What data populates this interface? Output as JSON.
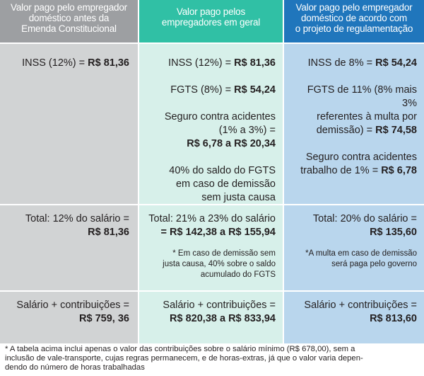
{
  "headers": {
    "col1": [
      "Valor pago pelo empregador",
      "doméstico antes da",
      "Emenda Constitucional"
    ],
    "col2": [
      "Valor pago pelos",
      "empregadores em geral"
    ],
    "col3": [
      "Valor pago pelo empregador",
      "doméstico de acordo com",
      "o projeto de regulamentação"
    ]
  },
  "contributions": {
    "col1": {
      "inss_label": "INSS (12%) = ",
      "inss_value": "R$ 81,36"
    },
    "col2": {
      "inss_label": "INSS (12%) = ",
      "inss_value": "R$ 81,36",
      "fgts_label": "FGTS (8%) = ",
      "fgts_value": "R$ 54,24",
      "seguro_line1": "Seguro contra acidentes",
      "seguro_line2": "(1% a 3%) =",
      "seguro_value": "R$ 6,78 a R$ 20,34",
      "multa_line1": "40% do saldo do FGTS",
      "multa_line2": "em caso de demissão",
      "multa_line3": "sem justa causa"
    },
    "col3": {
      "inss_label": "INSS de 8% = ",
      "inss_value": "R$ 54,24",
      "fgts_line1": "FGTS de 11% (8% mais 3%",
      "fgts_line2": "referentes à multa por",
      "fgts_line3_label": "demissão) = ",
      "fgts_value": "R$ 74,58",
      "seguro_line1": "Seguro contra acidentes",
      "seguro_line2_label": "trabalho de 1% = ",
      "seguro_value": "R$ 6,78"
    }
  },
  "totals": {
    "col1": {
      "label": "Total: 12% do salário =",
      "value": "R$ 81,36"
    },
    "col2": {
      "label": "Total: 21% a 23% do salário",
      "value": "= R$ 142,38 a R$ 155,94",
      "note_line1": "* Em caso de demissão sem",
      "note_line2": "justa causa, 40% sobre o saldo",
      "note_line3": "acumulado do FGTS"
    },
    "col3": {
      "label": "Total: 20% do salário =",
      "value": "R$ 135,60",
      "note_line1": "*A multa em caso de demissão",
      "note_line2": "será paga pelo governo"
    }
  },
  "salary": {
    "col1": {
      "label": "Salário + contribuições =",
      "value": "R$ 759, 36"
    },
    "col2": {
      "label": "Salário + contribuições =",
      "value": "R$ 820,38 a R$ 833,94"
    },
    "col3": {
      "label": "Salário + contribuições =",
      "value": "R$ 813,60"
    }
  },
  "footnote": {
    "line1": "* A tabela acima inclui apenas o valor das contribuições sobre o salário mínimo (R$ 678,00), sem a",
    "line2": "inclusão de vale-transporte, cujas regras permanecem, e de horas-extras, já que o valor varia depen-",
    "line3": "dendo do número de horas trabalhadas"
  },
  "colors": {
    "header_col1": "#9d9fa2",
    "header_col2": "#30c0a5",
    "header_col3": "#2076bc",
    "body_col1": "#d1d3d4",
    "body_col2": "#d7f0ea",
    "body_col3": "#b9d6ed"
  }
}
